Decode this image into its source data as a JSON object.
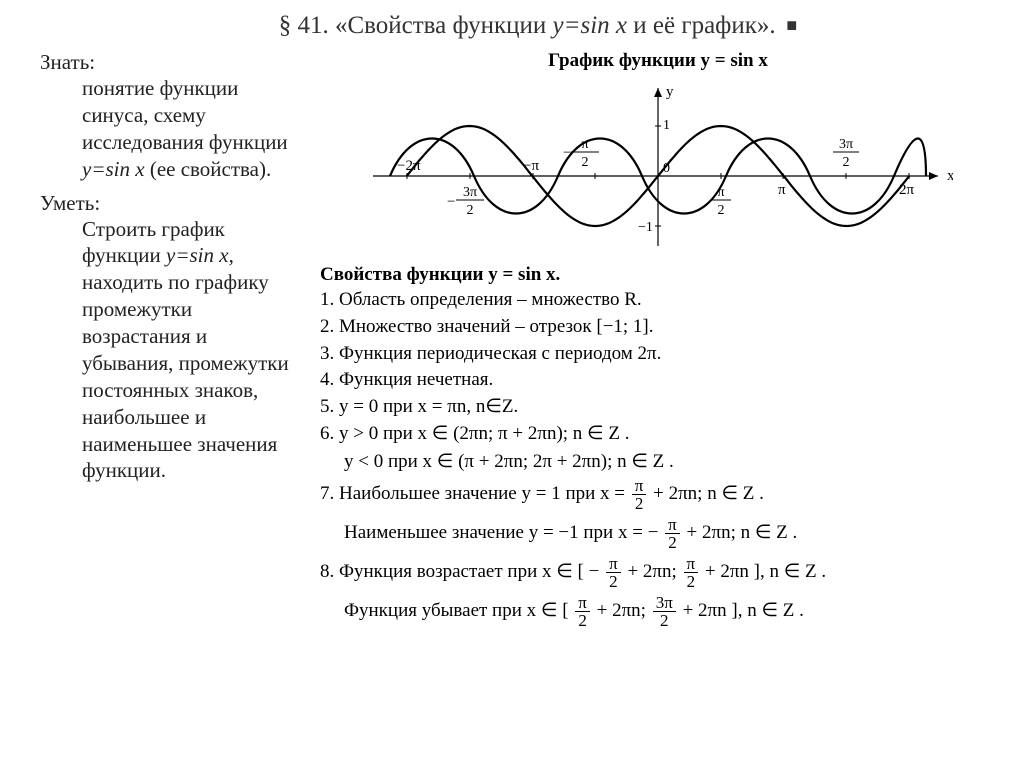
{
  "title_prefix": "§ 41. «Свойства функции ",
  "title_func": "y=sin x",
  "title_suffix": " и её график».",
  "left": {
    "know_label": "Знать: ",
    "know_body": "понятие функции синуса, схему исследования функции ",
    "know_func": "y=sin x",
    "know_tail": " (ее свойства).",
    "can_label": "Уметь: ",
    "can_body1": "Строить график функции ",
    "can_func": "y=sin x",
    "can_body2": ", находить по графику промежутки возрастания и убывания, промежутки постоянных знаков, наибольшее и наименьшее значения функции."
  },
  "graph": {
    "title": "График функции y = sin x",
    "x_label": "x",
    "y_label": "y",
    "tick_labels": {
      "m2pi": "−2π",
      "m3pi2_num": "3π",
      "m3pi2_den": "2",
      "mpi": "−π",
      "mpi2_num": "π",
      "mpi2_den": "2",
      "zero": "0",
      "pi2_num": "π",
      "pi2_den": "2",
      "pi": "π",
      "p3pi2_num": "3π",
      "p3pi2_den": "2",
      "p2pi": "2π",
      "one": "1",
      "mone": "−1"
    },
    "style": {
      "axis_color": "#000000",
      "curve_color": "#000000",
      "curve_width": 2.2,
      "axis_width": 1.2,
      "bg": "#ffffff"
    },
    "domain": [
      -6.6,
      6.6
    ],
    "amplitude": 1
  },
  "props": {
    "title": "Свойства функции y = sin x.",
    "p1": "1. Область определения – множество R.",
    "p2": "2. Множество значений – отрезок [−1; 1].",
    "p3": "3. Функция периодическая с периодом 2π.",
    "p4": "4. Функция нечетная.",
    "p5": "5. y = 0 при x = πn, n∈Z.",
    "p6a": "6. y > 0 при x ∈ (2πn;   π + 2πn);   n ∈ Z .",
    "p6b": "y < 0 при x ∈ (π + 2πn;   2π + 2πn);   n ∈ Z .",
    "p7a_pre": "7. Наибольшее значение y = 1 при  x = ",
    "p7a_num": "π",
    "p7a_den": "2",
    "p7a_post": " + 2πn;   n ∈ Z .",
    "p7b_pre": "Наименьшее значение y = −1 при x = −",
    "p7b_num": "π",
    "p7b_den": "2",
    "p7b_post": " + 2πn;   n ∈ Z .",
    "p8a_pre": "8. Функция возрастает при  x ∈ [ −",
    "p8a_n1": "π",
    "p8a_d1": "2",
    "p8a_mid": " + 2πn;  ",
    "p8a_n2": "π",
    "p8a_d2": "2",
    "p8a_post": " + 2πn ],  n ∈ Z .",
    "p8b_pre": "Функция убывает при x ∈ [ ",
    "p8b_n1": "π",
    "p8b_d1": "2",
    "p8b_mid": " + 2πn;  ",
    "p8b_n2": "3π",
    "p8b_d2": "2",
    "p8b_post": " + 2πn ],  n ∈ Z ."
  }
}
